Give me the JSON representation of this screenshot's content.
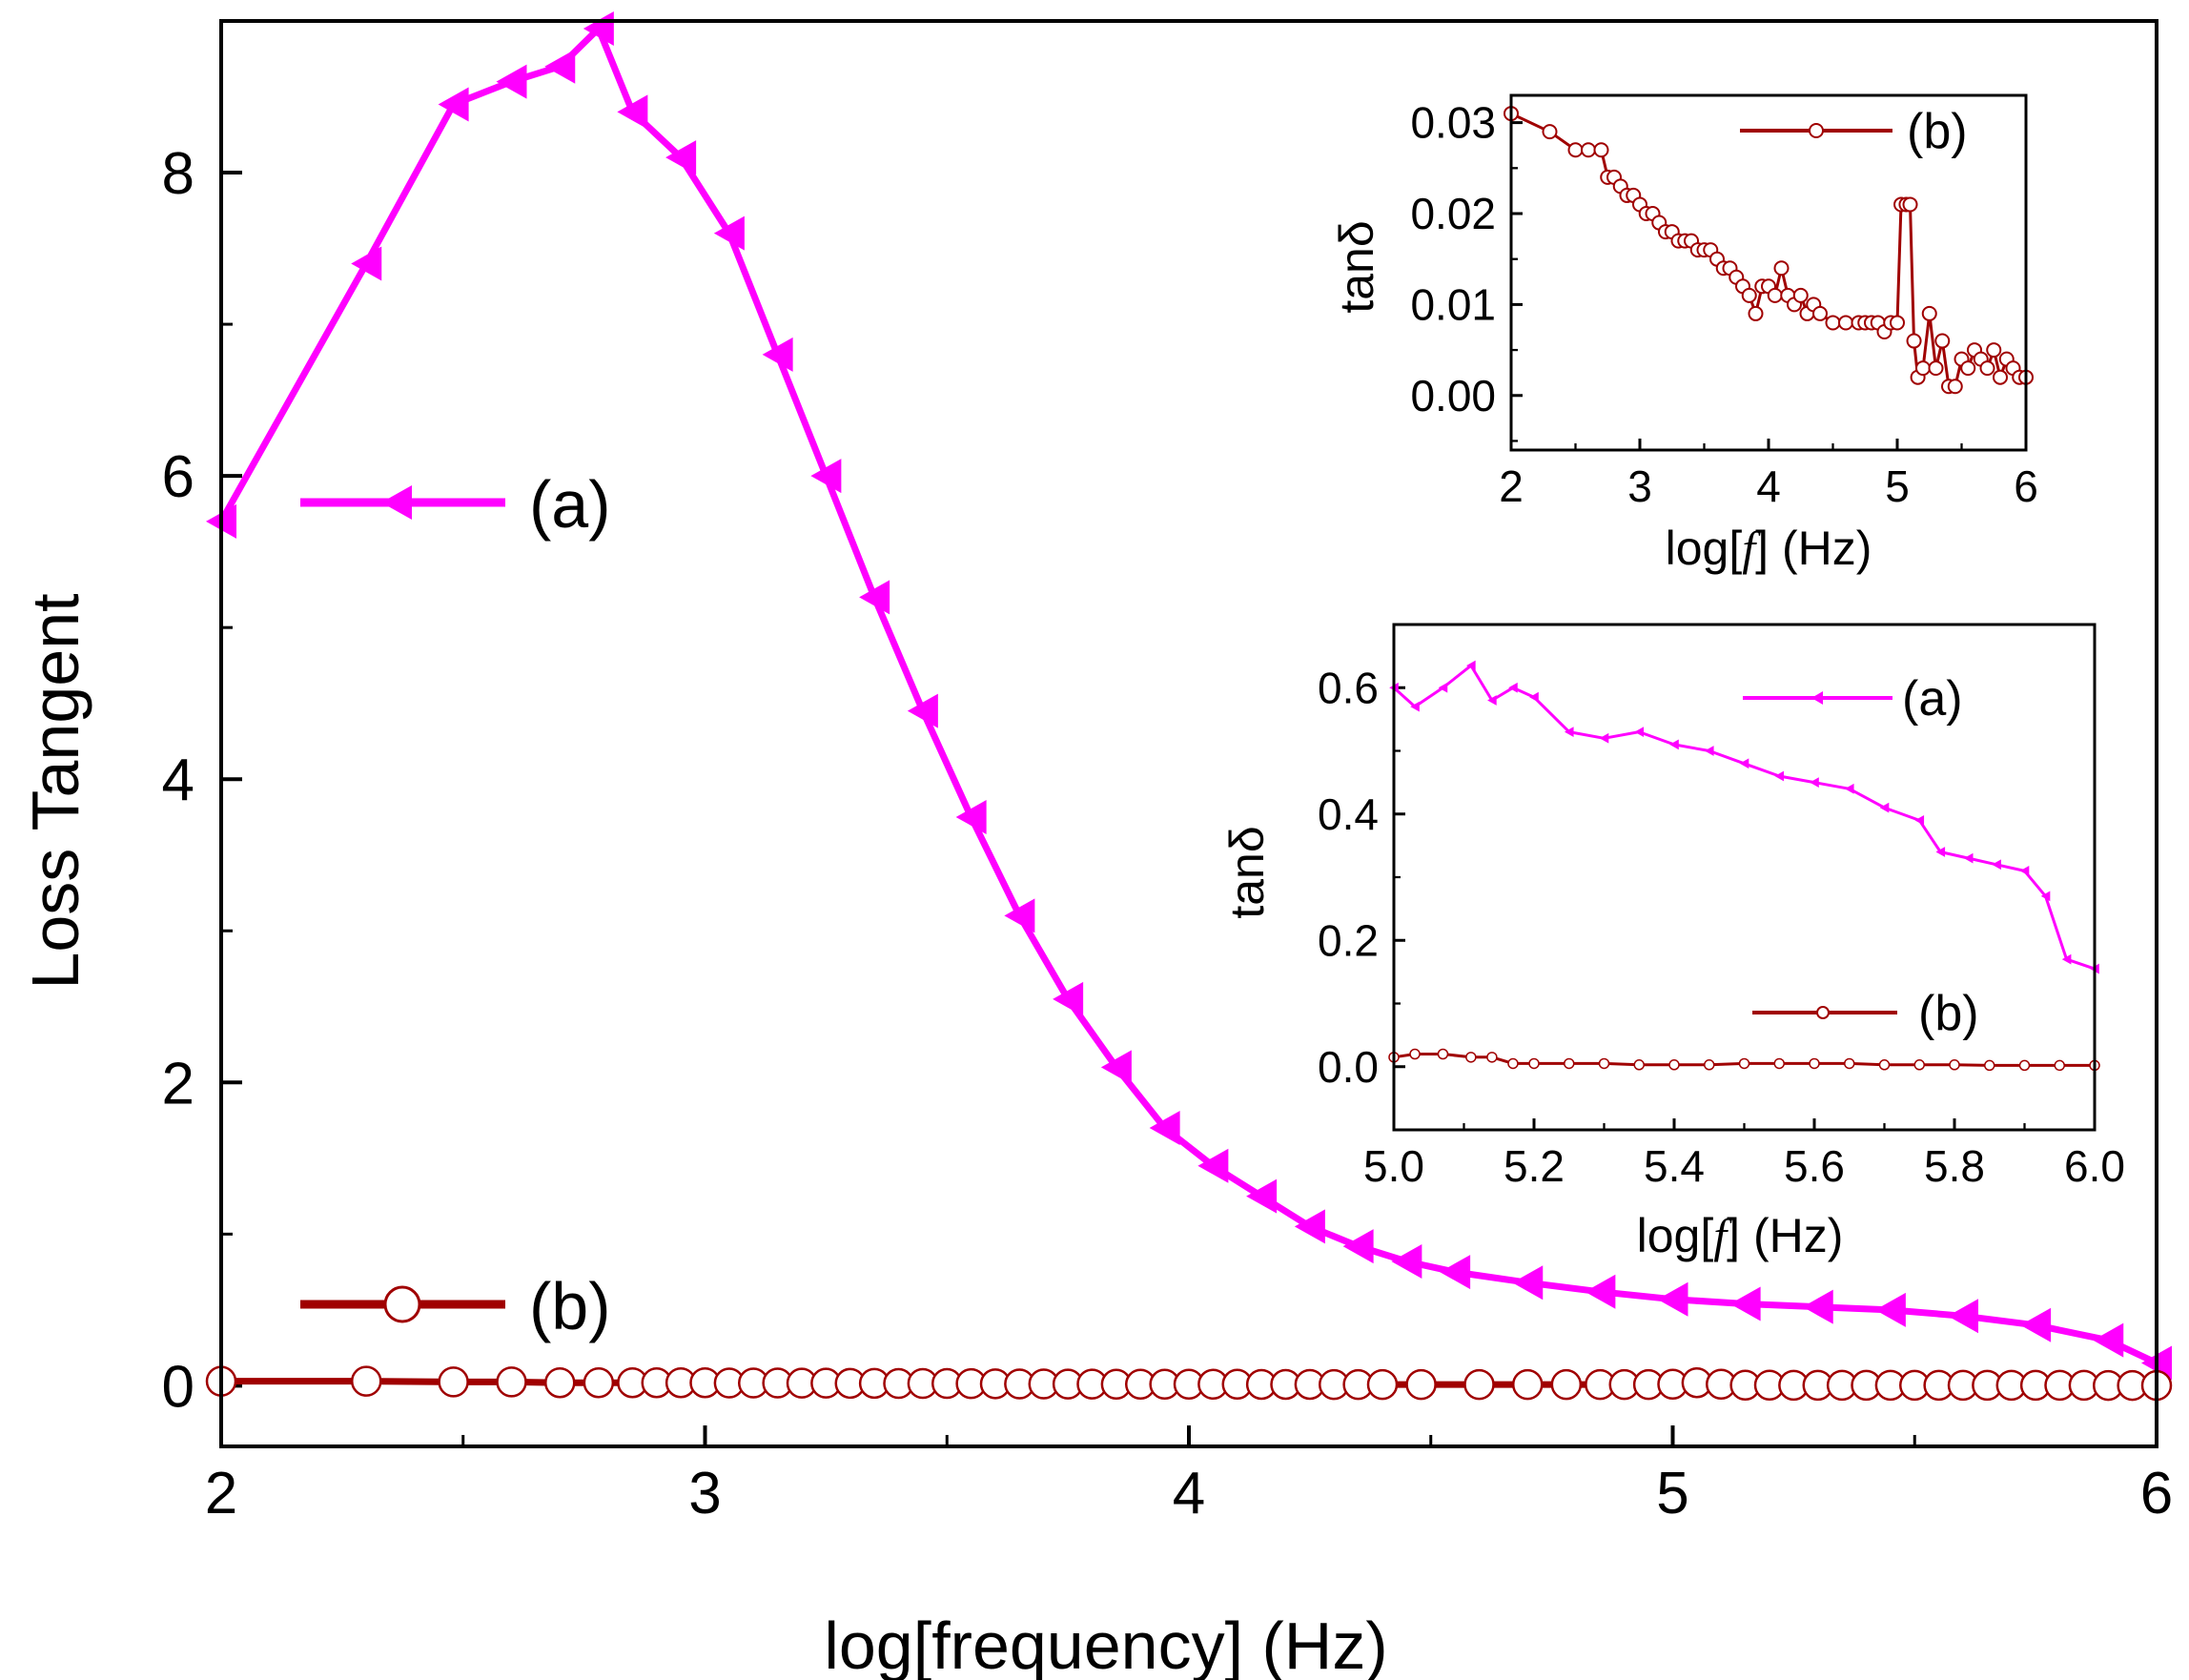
{
  "chart_data": [
    {
      "id": "main",
      "type": "line",
      "title": "",
      "xlabel": "log[frequency]  (Hz)",
      "ylabel": "Loss Tangent",
      "xlim": [
        2,
        6
      ],
      "ylim": [
        -0.4,
        9.0
      ],
      "xticks": [
        2,
        3,
        4,
        5,
        6
      ],
      "xtick_labels": [
        "2",
        "3",
        "4",
        "5",
        "6"
      ],
      "yticks": [
        0,
        2,
        4,
        6,
        8
      ],
      "ytick_labels": [
        "0",
        "2",
        "4",
        "6",
        "8"
      ],
      "grid": false,
      "legend_position": "left",
      "series": [
        {
          "name": "(a)",
          "color": "#ff00ff",
          "marker": "left-triangle",
          "x": [
            2.0,
            2.3,
            2.48,
            2.6,
            2.7,
            2.78,
            2.85,
            2.95,
            3.05,
            3.15,
            3.25,
            3.35,
            3.45,
            3.55,
            3.65,
            3.75,
            3.85,
            3.95,
            4.05,
            4.15,
            4.25,
            4.35,
            4.45,
            4.55,
            4.7,
            4.85,
            5.0,
            5.15,
            5.3,
            5.45,
            5.6,
            5.75,
            5.9,
            6.0
          ],
          "y": [
            5.7,
            7.4,
            8.45,
            8.6,
            8.7,
            8.95,
            8.4,
            8.1,
            7.6,
            6.8,
            6.0,
            5.2,
            4.45,
            3.75,
            3.1,
            2.55,
            2.1,
            1.7,
            1.45,
            1.25,
            1.05,
            0.92,
            0.82,
            0.75,
            0.68,
            0.62,
            0.57,
            0.54,
            0.52,
            0.5,
            0.46,
            0.4,
            0.3,
            0.15
          ]
        },
        {
          "name": "(b)",
          "color": "#a00000",
          "marker": "open-circle",
          "x": [
            2.0,
            2.3,
            2.48,
            2.6,
            2.7,
            2.78,
            2.85,
            2.9,
            2.95,
            3.0,
            3.05,
            3.1,
            3.15,
            3.2,
            3.25,
            3.3,
            3.35,
            3.4,
            3.45,
            3.5,
            3.55,
            3.6,
            3.65,
            3.7,
            3.75,
            3.8,
            3.85,
            3.9,
            3.95,
            4.0,
            4.05,
            4.1,
            4.15,
            4.2,
            4.25,
            4.3,
            4.35,
            4.4,
            4.48,
            4.6,
            4.7,
            4.78,
            4.85,
            4.9,
            4.95,
            5.0,
            5.05,
            5.1,
            5.15,
            5.2,
            5.25,
            5.3,
            5.35,
            5.4,
            5.45,
            5.5,
            5.55,
            5.6,
            5.65,
            5.7,
            5.75,
            5.8,
            5.85,
            5.9,
            5.95,
            6.0
          ],
          "y": [
            0.03,
            0.03,
            0.025,
            0.025,
            0.02,
            0.02,
            0.02,
            0.02,
            0.02,
            0.02,
            0.018,
            0.018,
            0.018,
            0.017,
            0.017,
            0.016,
            0.016,
            0.015,
            0.015,
            0.015,
            0.014,
            0.013,
            0.012,
            0.012,
            0.011,
            0.011,
            0.01,
            0.01,
            0.01,
            0.01,
            0.01,
            0.01,
            0.009,
            0.009,
            0.009,
            0.008,
            0.008,
            0.008,
            0.008,
            0.008,
            0.008,
            0.008,
            0.008,
            0.008,
            0.008,
            0.01,
            0.02,
            0.01,
            0.004,
            0.004,
            0.003,
            0.003,
            0.003,
            0.003,
            0.003,
            0.003,
            0.003,
            0.003,
            0.003,
            0.003,
            0.003,
            0.003,
            0.003,
            0.002,
            0.002,
            0.002
          ]
        }
      ]
    },
    {
      "id": "inset-top",
      "type": "line",
      "title": "",
      "xlabel_parts": [
        "log[",
        "f",
        "] (Hz)"
      ],
      "ylabel": "tanδ",
      "xlim": [
        2,
        6
      ],
      "ylim": [
        -0.006,
        0.033
      ],
      "xticks": [
        2,
        3,
        4,
        5,
        6
      ],
      "xtick_labels": [
        "2",
        "3",
        "4",
        "5",
        "6"
      ],
      "yticks": [
        0.0,
        0.01,
        0.02,
        0.03
      ],
      "ytick_labels": [
        "0.00",
        "0.01",
        "0.02",
        "0.03"
      ],
      "grid": false,
      "legend_position": "top-right",
      "series": [
        {
          "name": "(b)",
          "color": "#a00000",
          "marker": "open-circle",
          "x": [
            2.0,
            2.3,
            2.5,
            2.6,
            2.7,
            2.75,
            2.8,
            2.85,
            2.9,
            2.95,
            3.0,
            3.05,
            3.1,
            3.15,
            3.2,
            3.25,
            3.3,
            3.35,
            3.4,
            3.45,
            3.5,
            3.55,
            3.6,
            3.65,
            3.7,
            3.75,
            3.8,
            3.85,
            3.9,
            3.95,
            4.0,
            4.05,
            4.1,
            4.15,
            4.2,
            4.25,
            4.3,
            4.35,
            4.4,
            4.5,
            4.6,
            4.7,
            4.75,
            4.8,
            4.85,
            4.9,
            4.95,
            5.0,
            5.03,
            5.07,
            5.1,
            5.13,
            5.16,
            5.2,
            5.25,
            5.3,
            5.35,
            5.4,
            5.45,
            5.5,
            5.55,
            5.6,
            5.65,
            5.7,
            5.75,
            5.8,
            5.85,
            5.9,
            5.95,
            6.0
          ],
          "y": [
            0.031,
            0.029,
            0.027,
            0.027,
            0.027,
            0.024,
            0.024,
            0.023,
            0.022,
            0.022,
            0.021,
            0.02,
            0.02,
            0.019,
            0.018,
            0.018,
            0.017,
            0.017,
            0.017,
            0.016,
            0.016,
            0.016,
            0.015,
            0.014,
            0.014,
            0.013,
            0.012,
            0.011,
            0.009,
            0.012,
            0.012,
            0.011,
            0.014,
            0.011,
            0.01,
            0.011,
            0.009,
            0.01,
            0.009,
            0.008,
            0.008,
            0.008,
            0.008,
            0.008,
            0.008,
            0.007,
            0.008,
            0.008,
            0.021,
            0.021,
            0.021,
            0.006,
            0.002,
            0.003,
            0.009,
            0.003,
            0.006,
            0.001,
            0.001,
            0.004,
            0.003,
            0.005,
            0.004,
            0.003,
            0.005,
            0.002,
            0.004,
            0.003,
            0.002,
            0.002
          ]
        }
      ]
    },
    {
      "id": "inset-bottom",
      "type": "line",
      "title": "",
      "xlabel_parts": [
        "log[",
        "f",
        "]  (Hz)"
      ],
      "ylabel": "tanδ",
      "xlim": [
        5.0,
        6.0
      ],
      "ylim": [
        -0.1,
        0.7
      ],
      "xticks": [
        5.0,
        5.2,
        5.4,
        5.6,
        5.8,
        6.0
      ],
      "xtick_labels": [
        "5.0",
        "5.2",
        "5.4",
        "5.6",
        "5.8",
        "6.0"
      ],
      "yticks": [
        0.0,
        0.2,
        0.4,
        0.6
      ],
      "ytick_labels": [
        "0.0",
        "0.2",
        "0.4",
        "0.6"
      ],
      "grid": false,
      "legend_position": "right",
      "series": [
        {
          "name": "(a)",
          "color": "#ff00ff",
          "marker": "small-triangle",
          "x": [
            5.0,
            5.03,
            5.07,
            5.11,
            5.14,
            5.17,
            5.2,
            5.25,
            5.3,
            5.35,
            5.4,
            5.45,
            5.5,
            5.55,
            5.6,
            5.65,
            5.7,
            5.75,
            5.78,
            5.82,
            5.86,
            5.9,
            5.93,
            5.96,
            6.0
          ],
          "y": [
            0.6,
            0.57,
            0.6,
            0.635,
            0.58,
            0.6,
            0.585,
            0.53,
            0.52,
            0.53,
            0.51,
            0.5,
            0.48,
            0.46,
            0.45,
            0.44,
            0.41,
            0.39,
            0.34,
            0.33,
            0.32,
            0.31,
            0.27,
            0.17,
            0.155
          ]
        },
        {
          "name": "(b)",
          "color": "#a00000",
          "marker": "open-circle",
          "x": [
            5.0,
            5.03,
            5.07,
            5.11,
            5.14,
            5.17,
            5.2,
            5.25,
            5.3,
            5.35,
            5.4,
            5.45,
            5.5,
            5.55,
            5.6,
            5.65,
            5.7,
            5.75,
            5.8,
            5.85,
            5.9,
            5.95,
            6.0
          ],
          "y": [
            0.015,
            0.02,
            0.02,
            0.015,
            0.015,
            0.005,
            0.005,
            0.005,
            0.005,
            0.003,
            0.003,
            0.003,
            0.005,
            0.005,
            0.005,
            0.005,
            0.003,
            0.003,
            0.003,
            0.002,
            0.002,
            0.002,
            0.002
          ]
        }
      ]
    }
  ]
}
